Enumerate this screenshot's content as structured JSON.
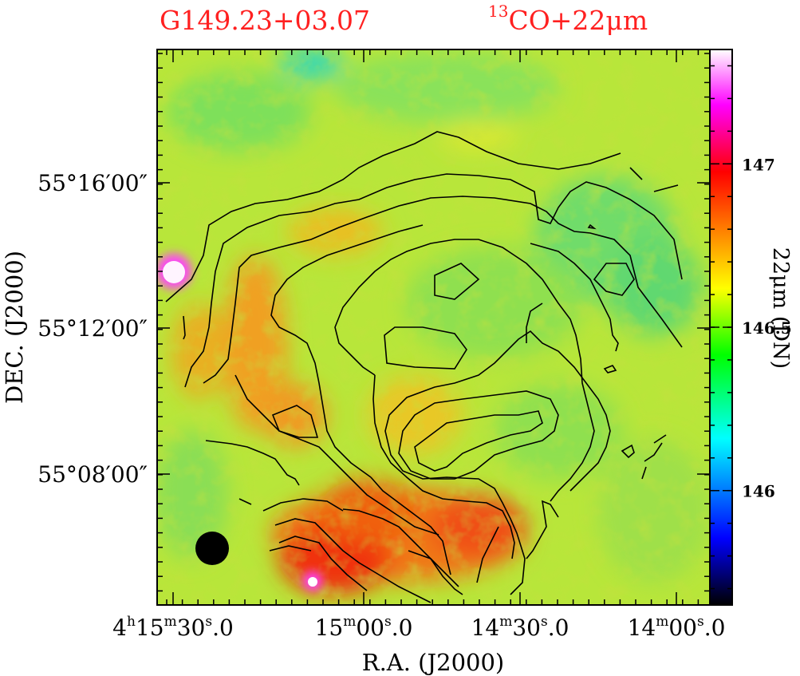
{
  "chart_data": {
    "type": "heatmap",
    "title_left": "G149.23+03.07",
    "title_right_sup": "13",
    "title_right_text": "CO+22μm",
    "xlabel": "R.A. (J2000)",
    "ylabel": "DEC. (J2000)",
    "colorbar_label": "22μm (DN)",
    "x_ticks": [
      {
        "h": "4",
        "m": "15",
        "s": "30.0",
        "show_h": true,
        "show_m": true
      },
      {
        "h": "",
        "m": "15",
        "s": "00.0",
        "show_h": false,
        "show_m": true
      },
      {
        "h": "",
        "m": "14",
        "s": "30.0",
        "show_h": false,
        "show_m": true
      },
      {
        "h": "",
        "m": "14",
        "s": "00.0",
        "show_h": false,
        "show_m": true
      }
    ],
    "y_ticks": [
      "55°16′00″",
      "55°12′00″",
      "55°08′00″"
    ],
    "colorbar_ticks": [
      "147",
      "146.5",
      "146"
    ],
    "colorbar_range": [
      145.65,
      147.35
    ],
    "colorbar_tick_values": [
      147,
      146.5,
      146
    ],
    "colormap": [
      "#000000",
      "#0000ff",
      "#00ffff",
      "#00ff00",
      "#ffff00",
      "#ff0000",
      "#ff00ff",
      "#ffffff"
    ],
    "contour_color": "#000000",
    "beam_color": "#000000",
    "title_color": "#ff2020"
  }
}
